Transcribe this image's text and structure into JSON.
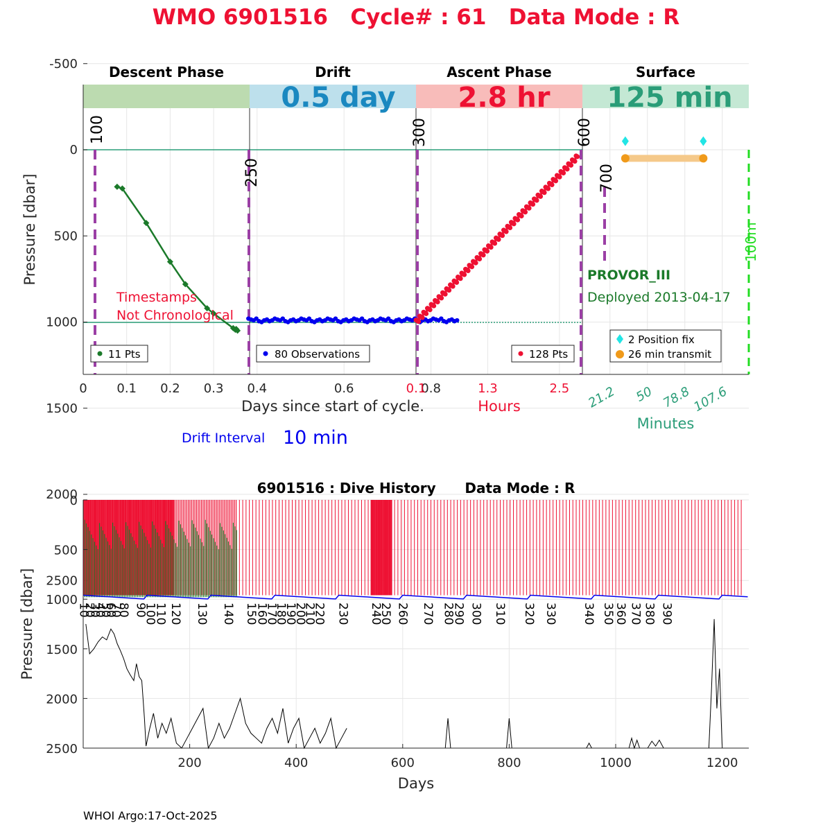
{
  "title": "WMO 6901516   Cycle# : 61   Data Mode : R",
  "footer": "WHOI Argo:17-Oct-2025",
  "colors": {
    "title": "#ee1133",
    "descent": "#1b7a2a",
    "drift": "#0000ee",
    "ascent": "#ee1133",
    "surface": "#2a9d78",
    "phase_line": "#9b3fa5",
    "position_fix": "#22e5e5",
    "transmit": "#f09a1a",
    "dive_ascent": "#ee1133",
    "dive_descent": "#1b7a2a",
    "green_dash": "#22dd22",
    "ref_line": "#2a9d78"
  },
  "chart_data": [
    {
      "type": "line",
      "name": "cycle",
      "phases": [
        {
          "label": "Descent Phase",
          "banner": "",
          "banner_color": "#bcdbb0",
          "text_color": "#1b7a2a"
        },
        {
          "label": "Drift",
          "banner": "0.5 day",
          "banner_color": "#bde0ec",
          "text_color": "#1a88c0"
        },
        {
          "label": "Ascent Phase",
          "banner": "2.8 hr",
          "banner_color": "#f8bcba",
          "text_color": "#ee1133"
        },
        {
          "label": "Surface",
          "banner": "125 min",
          "banner_color": "#c4e8d4",
          "text_color": "#2a9d78"
        }
      ],
      "ylabel": "Pressure [dbar]",
      "ylim": [
        -750,
        2600
      ],
      "yticks": [
        "-500",
        "0",
        "500",
        "1000",
        "1500",
        "2000",
        "2500"
      ],
      "xlabel_days": "Days since start of cycle.",
      "xlabel_hours": "Hours",
      "xlabel_minutes": "Minutes",
      "descent_xticks": [
        "0",
        "0.1",
        "0.2",
        "0.3"
      ],
      "drift_xticks": [
        "0.4",
        "0.6",
        "0.8"
      ],
      "ascent_xticks": [
        "0.1",
        "1.3",
        "2.5"
      ],
      "surface_xticks": [
        "21.2",
        "50",
        "78.8",
        "107.6"
      ],
      "descent": {
        "legend": "11 Pts",
        "x": [
          0.078,
          0.09,
          0.145,
          0.2,
          0.235,
          0.285,
          0.3,
          0.345,
          0.35,
          0.352,
          0.355
        ],
        "y": [
          215,
          225,
          425,
          650,
          780,
          920,
          950,
          1035,
          1045,
          1040,
          1050
        ]
      },
      "drift": {
        "legend": "80 Observations",
        "x_range": [
          0.38,
          0.86
        ],
        "y": [
          980,
          985,
          990,
          980,
          995,
          1000,
          990,
          985,
          995,
          990
        ]
      },
      "ascent": {
        "legend": "128 Pts",
        "x_range": [
          0.1,
          2.8
        ],
        "y_start": 1000,
        "y_end": 40
      },
      "surface": {
        "position_fix_legend": "2 Position fix",
        "transmit_legend": "26 min transmit",
        "fix_minutes": [
          33,
          93
        ],
        "fix_y": -50,
        "transmit_y": 50
      },
      "phase_marks": [
        {
          "label": "100",
          "x_frac": 0.025
        },
        {
          "label": "250",
          "x_frac": 0.251
        },
        {
          "label": "300",
          "x_frac": 0.5
        },
        {
          "label": "600",
          "x_frac": 0.75
        },
        {
          "label": "700",
          "x_frac": 0.78
        }
      ],
      "green_label": "100m",
      "annotation_red": [
        "Timestamps",
        "Not Chronological"
      ],
      "float_type": "PROVOR_III",
      "deployed": "Deployed 2013-04-17",
      "drift_interval_label": "Drift Interval",
      "drift_interval_value": "10 min"
    },
    {
      "type": "line",
      "name": "dive_history",
      "title": "6901516 : Dive History      Data Mode : R",
      "ylabel": "Pressure [dbar]",
      "xlabel": "Days",
      "xlim": [
        0,
        1250
      ],
      "ylim": [
        0,
        2500
      ],
      "xticks": [
        200,
        400,
        600,
        800,
        1000,
        1200
      ],
      "yticks": [
        0,
        500,
        1000,
        1500,
        2000,
        2500
      ],
      "cycle_labels": [
        "10",
        "20",
        "30",
        "40",
        "50",
        "60",
        "70",
        "80",
        "90",
        "100",
        "110",
        "120",
        "130",
        "140",
        "150",
        "160",
        "170",
        "180",
        "190",
        "200",
        "210",
        "220",
        "230",
        "240",
        "250",
        "260",
        "270",
        "280",
        "290",
        "300",
        "310",
        "320",
        "330",
        "340",
        "350",
        "360",
        "370",
        "380",
        "390"
      ],
      "cycle_days": [
        3,
        14,
        24,
        34,
        44,
        54,
        64,
        78,
        110,
        128,
        148,
        176,
        225,
        275,
        318,
        338,
        356,
        374,
        392,
        410,
        428,
        446,
        490,
        552,
        570,
        602,
        650,
        688,
        708,
        740,
        785,
        840,
        880,
        952,
        988,
        1012,
        1040,
        1066,
        1098
      ],
      "max_depth": {
        "x": [
          5,
          12,
          20,
          28,
          36,
          44,
          52,
          58,
          64,
          70,
          76,
          82,
          88,
          95,
          100,
          105,
          110,
          115,
          118,
          125,
          132,
          140,
          148,
          156,
          165,
          175,
          185,
          195,
          205,
          215,
          225,
          235,
          245,
          255,
          265,
          275,
          285,
          295,
          305,
          315,
          325,
          335,
          345,
          355,
          365,
          375,
          385,
          395,
          405,
          415,
          425,
          435,
          445,
          455,
          465,
          475,
          485,
          495
        ],
        "y": [
          1250,
          1550,
          1500,
          1430,
          1380,
          1410,
          1300,
          1350,
          1450,
          1520,
          1600,
          1700,
          1760,
          1820,
          1650,
          1780,
          1820,
          2200,
          2480,
          2300,
          2150,
          2400,
          2250,
          2350,
          2200,
          2450,
          2500,
          2400,
          2300,
          2200,
          2100,
          2500,
          2400,
          2250,
          2400,
          2300,
          2150,
          2000,
          2250,
          2350,
          2400,
          2450,
          2300,
          2200,
          2350,
          2100,
          2450,
          2300,
          2200,
          2500,
          2400,
          2300,
          2450,
          2350,
          2200,
          2500,
          2400,
          2300
        ]
      },
      "late_segments": [
        {
          "x": [
            680,
            685,
            690
          ],
          "y": [
            2500,
            2200,
            2500
          ]
        },
        {
          "x": [
            795,
            800,
            805
          ],
          "y": [
            2500,
            2200,
            2500
          ]
        },
        {
          "x": [
            945,
            950,
            955
          ],
          "y": [
            2500,
            2450,
            2500
          ]
        },
        {
          "x": [
            1025,
            1030,
            1035,
            1040,
            1045
          ],
          "y": [
            2500,
            2400,
            2500,
            2420,
            2500
          ]
        },
        {
          "x": [
            1060,
            1068,
            1075,
            1082,
            1090
          ],
          "y": [
            2500,
            2430,
            2480,
            2420,
            2500
          ]
        },
        {
          "x": [
            1175,
            1180,
            1185,
            1190,
            1195,
            1200
          ],
          "y": [
            2500,
            1900,
            1200,
            2100,
            1700,
            2500
          ]
        }
      ],
      "n_cycles": 400
    }
  ]
}
